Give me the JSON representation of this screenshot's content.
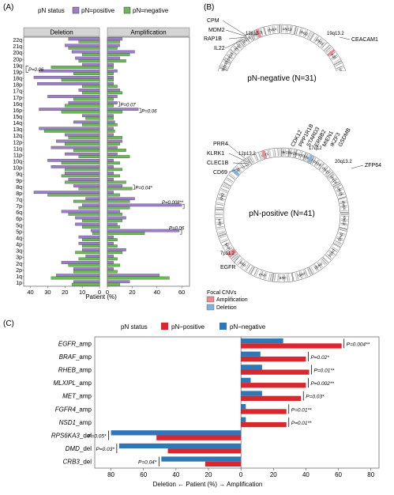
{
  "panel_labels": {
    "a": "(A)",
    "b": "(B)",
    "c": "(C)"
  },
  "colors": {
    "positive": "#9b7fc6",
    "negative": "#6ab956",
    "amp": "#d9262f",
    "del": "#2f78b7",
    "strip": "#d4d4d4",
    "amp_hl": "#e98a93",
    "del_hl": "#7fb3dc"
  },
  "panel_a": {
    "legend_title": "pN status",
    "legend_pos": "pN=positive",
    "legend_neg": "pN=negative",
    "strip_left": "Deletion",
    "strip_right": "Amplification",
    "xlabel": "Patient (%)"
  },
  "panel_b": {
    "top_title": "pN-negative (N=31)",
    "bottom_title": "pN-positive (N=41)",
    "top_band_left": "12q15",
    "top_band_right": "19q13.2",
    "top_genes_left": [
      "CPM",
      "MDM2",
      "RAP1B",
      "IL22"
    ],
    "top_gene_right": "CEACAM1",
    "bottom_band_12p": "12p13.2",
    "bottom_band_17q": "17q12",
    "bottom_band_20q": "20q13.2",
    "bottom_band_7p": "7p11.2",
    "bottom_genes_12p": [
      "PRR4",
      "KLRK1",
      "CLEC1B",
      "CD69"
    ],
    "bottom_genes_17q": [
      "CDK12",
      "PPP1R1B",
      "STARD3",
      "ERBB2",
      "MIEN1",
      "IKZF3",
      "GSDMB"
    ],
    "bottom_gene_20q": "ZFP64",
    "bottom_gene_7p": "EGFR",
    "focal_title": "Focal CNVs",
    "focal_amp": "Amplification",
    "focal_del": "Deletion",
    "chr_labels_top": [
      "chr22",
      "chr21",
      "chr20",
      "chr19",
      "chr18",
      "chr17",
      "chr16",
      "chr15",
      "chr14",
      "chr13",
      "chr12",
      "chr11",
      "chr10",
      "chr9",
      "chr8",
      "chr7",
      "chr6",
      "chr5",
      "chr4",
      "chr3",
      "chr2",
      "chr1"
    ],
    "chr_labels_bottom": [
      "chr22",
      "chr21",
      "chr20",
      "chr19",
      "chr18",
      "chr17",
      "chr16",
      "chr15",
      "chr14",
      "chr13",
      "chr12",
      "chr11",
      "chr10",
      "chr9",
      "chr8",
      "chr7",
      "chr6",
      "chr5",
      "chr4",
      "chr3",
      "chr2",
      "chr1"
    ]
  },
  "panel_c": {
    "legend_title": "pN status",
    "legend_pos": "pN−positive",
    "legend_neg": "pN−negative",
    "xlabel": "Deletion ← Patient (%) → Amplification"
  },
  "chart_data": [
    {
      "type": "bar",
      "orientation": "horizontal",
      "categories": [
        "22q",
        "21q",
        "20q",
        "20p",
        "19q",
        "19p",
        "18q",
        "18p",
        "17q",
        "17p",
        "16q",
        "16p",
        "15q",
        "14q",
        "13q",
        "12q",
        "12p",
        "11q",
        "11p",
        "10q",
        "10p",
        "9q",
        "9p",
        "8q",
        "8p",
        "7q",
        "7p",
        "6q",
        "6p",
        "5q",
        "5p",
        "4q",
        "4p",
        "3q",
        "3p",
        "2q",
        "2p",
        "1q",
        "1p"
      ],
      "facets": [
        "Deletion",
        "Amplification"
      ],
      "deletion": {
        "pN=positive": [
          18,
          20,
          16,
          14,
          10,
          35,
          38,
          36,
          12,
          30,
          18,
          35,
          10,
          15,
          35,
          20,
          25,
          28,
          20,
          30,
          28,
          20,
          18,
          15,
          38,
          8,
          10,
          22,
          14,
          14,
          5,
          12,
          12,
          10,
          8,
          22,
          15,
          25,
          15
        ],
        "pN=negative": [
          12,
          18,
          10,
          12,
          28,
          15,
          22,
          10,
          10,
          15,
          20,
          22,
          8,
          10,
          32,
          18,
          20,
          15,
          12,
          22,
          20,
          22,
          20,
          12,
          30,
          15,
          12,
          18,
          10,
          10,
          4,
          10,
          10,
          14,
          12,
          18,
          15,
          28,
          16
        ]
      },
      "amplification": {
        "pN=positive": [
          12,
          10,
          22,
          10,
          5,
          8,
          5,
          5,
          10,
          8,
          8,
          25,
          5,
          6,
          5,
          5,
          12,
          8,
          8,
          5,
          5,
          5,
          5,
          12,
          5,
          22,
          60,
          10,
          15,
          8,
          58,
          5,
          5,
          15,
          5,
          5,
          5,
          42,
          18
        ],
        "pN=negative": [
          10,
          8,
          18,
          15,
          5,
          5,
          5,
          8,
          12,
          5,
          5,
          12,
          5,
          8,
          6,
          12,
          10,
          15,
          18,
          10,
          12,
          10,
          15,
          20,
          10,
          18,
          18,
          12,
          12,
          10,
          30,
          8,
          8,
          12,
          8,
          10,
          8,
          50,
          10
        ]
      },
      "p_values": [
        {
          "label": "P=0.06",
          "between": [
            "19q",
            "19p"
          ],
          "side": "deletion"
        },
        {
          "label": "P=0.07",
          "between": [
            "16q",
            "16p"
          ],
          "side": "amplification",
          "row": "16q"
        },
        {
          "label": "P=0.06",
          "between": [
            "16q",
            "16p"
          ],
          "side": "amplification",
          "row": "16p"
        },
        {
          "label": "P=0.04*",
          "between": [
            "8q",
            "7q"
          ],
          "side": "amplification",
          "row": "8q"
        },
        {
          "label": "P=0.008**",
          "between": [
            "7q",
            "7p"
          ],
          "side": "amplification",
          "row": "7p"
        },
        {
          "label": "P=0.06",
          "between": [
            "5q",
            "5p"
          ],
          "side": "amplification",
          "row": "5p"
        }
      ],
      "xlabel": "Patient (%)",
      "deletion_ticks": [
        40,
        30,
        20,
        10,
        0
      ],
      "amplification_ticks": [
        0,
        20,
        40,
        60
      ],
      "deletion_xlim": [
        0,
        43
      ],
      "amplification_xlim": [
        0,
        65
      ]
    },
    {
      "type": "bar",
      "orientation": "horizontal",
      "categories": [
        "EGFR_amp",
        "BRAF_amp",
        "RHEB_amp",
        "MLXIPL_amp",
        "MET_amp",
        "FGFR4_amp",
        "NSD1_amp",
        "RPS6KA3_del",
        "DMD_del",
        "CRB3_del"
      ],
      "series": [
        {
          "name": "pN−positive",
          "values": [
            62,
            40,
            42,
            40,
            37,
            28,
            28,
            -52,
            -45,
            -22
          ]
        },
        {
          "name": "pN−negative",
          "values": [
            26,
            12,
            13,
            6,
            13,
            3,
            3,
            -80,
            -75,
            -49
          ]
        }
      ],
      "p_values": [
        "P=0.004**",
        "P=0.02*",
        "P=0.01**",
        "P=0.002**",
        "P=0.03*",
        "P=0.01**",
        "P=0.01**",
        "P=0.05*",
        "P=0.03*",
        "P=0.04*"
      ],
      "xlim": [
        -90,
        85
      ],
      "xticks": [
        "80",
        "60",
        "40",
        "20",
        "0",
        "20",
        "40",
        "60",
        "80"
      ],
      "xtick_values": [
        -80,
        -60,
        -40,
        -20,
        0,
        20,
        40,
        60,
        80
      ],
      "xlabel": "Deletion ← Patient (%) → Amplification"
    }
  ]
}
